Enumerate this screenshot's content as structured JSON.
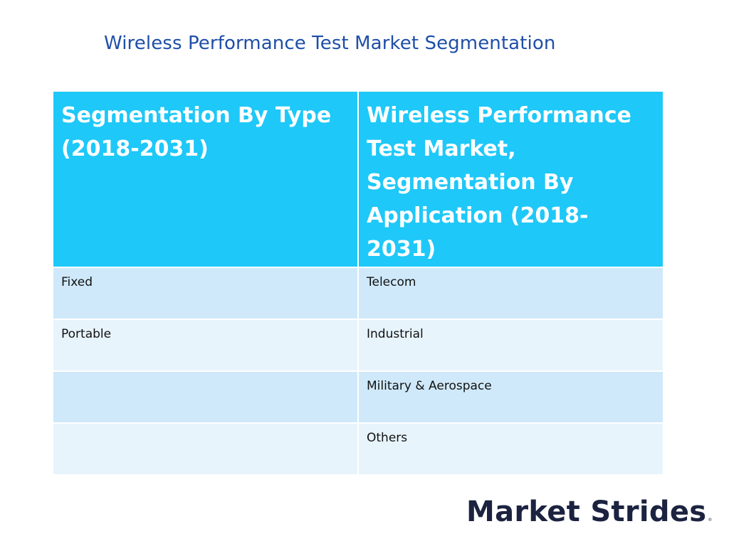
{
  "title": "Wireless Performance Test Market Segmentation",
  "table": {
    "headers": [
      "Segmentation By Type (2018-2031)",
      "Wireless Performance Test Market, Segmentation By Application (2018-2031)"
    ],
    "rows": [
      [
        "Fixed",
        "Telecom"
      ],
      [
        "Portable",
        "Industrial"
      ],
      [
        "",
        "Military & Aerospace"
      ],
      [
        "",
        "Others"
      ]
    ]
  },
  "logo": {
    "text": "Market Strides",
    "mark": "®"
  },
  "colors": {
    "title": "#1f4fa8",
    "header_bg": "#1ec8f8",
    "row_dark": "#cfe9fa",
    "row_light": "#e7f4fc",
    "logo": "#1c2340"
  }
}
